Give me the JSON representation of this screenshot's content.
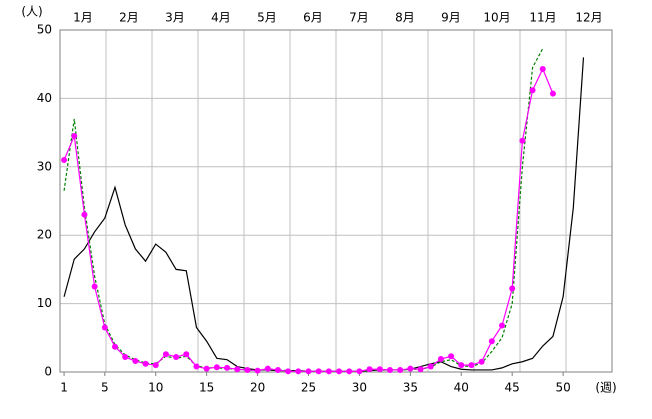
{
  "chart_data": {
    "type": "line",
    "y_label": "(人)",
    "x_label": "(週)",
    "months": [
      "1月",
      "2月",
      "3月",
      "4月",
      "5月",
      "6月",
      "7月",
      "8月",
      "9月",
      "10月",
      "11月",
      "12月"
    ],
    "x": [
      1,
      2,
      3,
      4,
      5,
      6,
      7,
      8,
      9,
      10,
      11,
      12,
      13,
      14,
      15,
      16,
      17,
      18,
      19,
      20,
      21,
      22,
      23,
      24,
      25,
      26,
      27,
      28,
      29,
      30,
      31,
      32,
      33,
      34,
      35,
      36,
      37,
      38,
      39,
      40,
      41,
      42,
      43,
      44,
      45,
      46,
      47,
      48,
      49,
      50,
      51,
      52
    ],
    "xlim": [
      0.6,
      54.8
    ],
    "xticks": [
      1,
      5,
      10,
      15,
      20,
      25,
      30,
      35,
      40,
      45,
      50
    ],
    "ylim": [
      0,
      50
    ],
    "yticks": [
      0,
      10,
      20,
      30,
      40,
      50
    ],
    "grid": true,
    "series": [
      {
        "color": "#000000",
        "style": "solid",
        "markers": false,
        "values": [
          11,
          16.5,
          18,
          20.5,
          22.5,
          27,
          21.5,
          18,
          16.2,
          18.7,
          17.5,
          15,
          14.8,
          6.5,
          4.5,
          2,
          1.8,
          0.8,
          0.5,
          0.3,
          0.3,
          0.2,
          0.2,
          0.2,
          0.1,
          0.1,
          0.1,
          0.1,
          0.1,
          0.1,
          0.2,
          0.3,
          0.3,
          0.3,
          0.4,
          0.8,
          1.2,
          1.5,
          0.8,
          0.4,
          0.3,
          0.3,
          0.3,
          0.6,
          1.2,
          1.5,
          2.0,
          3.8,
          5.2,
          11,
          24,
          46
        ]
      },
      {
        "color": "#008000",
        "style": "dashed",
        "markers": false,
        "values": [
          26.5,
          37,
          24,
          14,
          7,
          4,
          2.5,
          1.8,
          1.3,
          1.2,
          2.3,
          2.0,
          2.3,
          0.9,
          0.6,
          0.6,
          0.5,
          0.4,
          0.3,
          0.2,
          0.4,
          0.3,
          0.2,
          0.1,
          0.1,
          0.1,
          0.1,
          0.1,
          0.1,
          0.1,
          0.3,
          0.4,
          0.3,
          0.3,
          0.4,
          0.4,
          0.7,
          1.5,
          1.8,
          0.9,
          0.8,
          1.3,
          3,
          5,
          10,
          30,
          44.5,
          47.3,
          null,
          null,
          null,
          null
        ]
      },
      {
        "color": "#ff00ff",
        "style": "solid",
        "markers": true,
        "values": [
          31,
          34.5,
          23,
          12.5,
          6.5,
          3.7,
          2.2,
          1.6,
          1.2,
          1.0,
          2.6,
          2.2,
          2.6,
          0.8,
          0.5,
          0.7,
          0.6,
          0.4,
          0.3,
          0.2,
          0.5,
          0.3,
          0.1,
          0.1,
          0.1,
          0.1,
          0.1,
          0.1,
          0.1,
          0.1,
          0.4,
          0.4,
          0.3,
          0.3,
          0.5,
          0.4,
          0.8,
          1.9,
          2.3,
          1.0,
          1.0,
          1.5,
          4.5,
          6.8,
          12.2,
          33.8,
          41.2,
          44.3,
          40.7,
          null,
          null,
          null
        ]
      }
    ]
  }
}
